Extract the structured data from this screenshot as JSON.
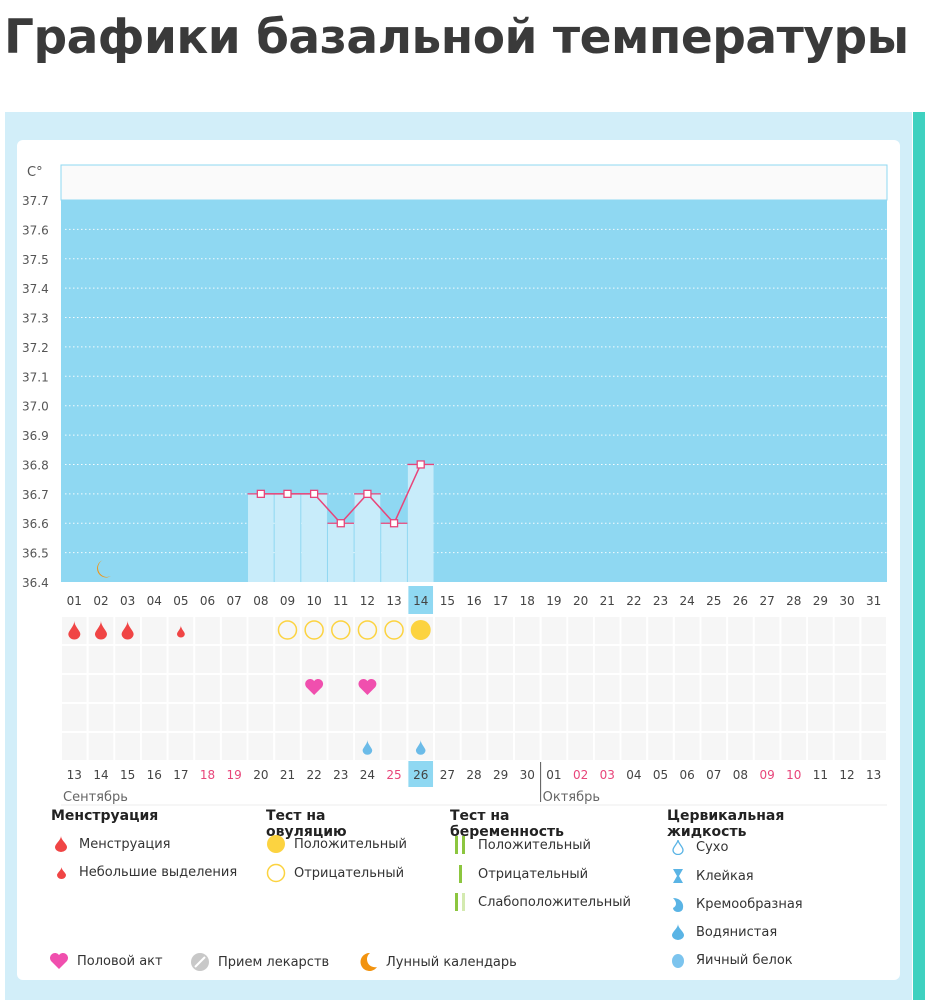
{
  "page_title": "Графики базальной температуры",
  "chart_data": {
    "type": "bar",
    "ylabel": "C°",
    "ylim": [
      36.4,
      37.7
    ],
    "yticks": [
      "37.7",
      "37.6",
      "37.5",
      "37.4",
      "37.3",
      "37.2",
      "37.1",
      "37.0",
      "36.9",
      "36.8",
      "36.7",
      "36.6",
      "36.5",
      "36.4"
    ],
    "cycle_days": [
      "01",
      "02",
      "03",
      "04",
      "05",
      "06",
      "07",
      "08",
      "09",
      "10",
      "11",
      "12",
      "13",
      "14",
      "15",
      "16",
      "17",
      "18",
      "19",
      "20",
      "21",
      "22",
      "23",
      "24",
      "25",
      "26",
      "27",
      "28",
      "29",
      "30",
      "31"
    ],
    "current_cycle_day": "14",
    "temperatures": [
      {
        "day": "08",
        "value": 36.7
      },
      {
        "day": "09",
        "value": 36.7
      },
      {
        "day": "10",
        "value": 36.7
      },
      {
        "day": "11",
        "value": 36.6
      },
      {
        "day": "12",
        "value": 36.7
      },
      {
        "day": "13",
        "value": 36.6
      },
      {
        "day": "14",
        "value": 36.8
      }
    ],
    "calendar_dates": [
      "13",
      "14",
      "15",
      "16",
      "17",
      "18",
      "19",
      "20",
      "21",
      "22",
      "23",
      "24",
      "25",
      "26",
      "27",
      "28",
      "29",
      "30",
      "01",
      "02",
      "03",
      "04",
      "05",
      "06",
      "07",
      "08",
      "09",
      "10",
      "11",
      "12",
      "13"
    ],
    "weekend_date_indices": [
      5,
      6,
      12,
      19,
      20,
      26,
      27
    ],
    "current_date": "26",
    "months": [
      {
        "label": "Сентябрь",
        "start_index": 0
      },
      {
        "label": "Октябрь",
        "start_index": 18
      }
    ],
    "markers": {
      "moon": [
        "02"
      ],
      "menstruation": [
        "01",
        "02",
        "03"
      ],
      "spotting": [
        "05"
      ],
      "ovulation_negative": [
        "09",
        "10",
        "11",
        "12",
        "13"
      ],
      "ovulation_positive": [
        "14"
      ],
      "intercourse": [
        "10",
        "12"
      ],
      "cervical_watery": [
        "12",
        "14"
      ]
    },
    "grid": true,
    "colors": {
      "band": "#8fd8f2",
      "bar": "#c8ecfa",
      "line": "#e8457a",
      "today": "#8fd8f2",
      "weekend": "#e8457a"
    }
  },
  "legend": {
    "menstruation": {
      "title": "Менструация",
      "items": [
        "Менструация",
        "Небольшие выделения"
      ]
    },
    "ovulation": {
      "title": "Тест на овуляцию",
      "items": [
        "Положительный",
        "Отрицательный"
      ]
    },
    "pregnancy": {
      "title": "Тест на беременность",
      "items": [
        "Положительный",
        "Отрицательный",
        "Слабоположительный"
      ]
    },
    "cervical": {
      "title": "Цервикальная жидкость",
      "items": [
        "Сухо",
        "Клейкая",
        "Кремообразная",
        "Водянистая",
        "Яичный белок"
      ]
    },
    "other": [
      "Половой акт",
      "Прием лекарств",
      "Лунный календарь"
    ]
  }
}
